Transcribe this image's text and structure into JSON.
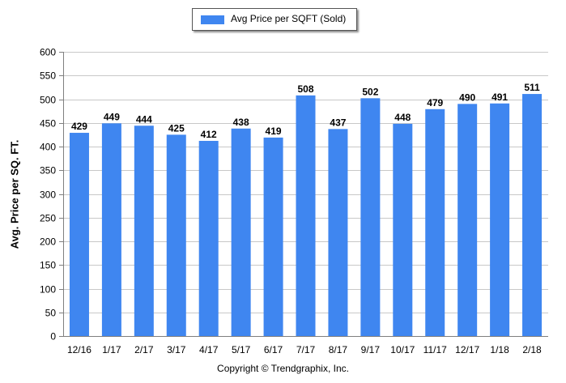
{
  "chart_data": {
    "type": "bar",
    "categories": [
      "12/16",
      "1/17",
      "2/17",
      "3/17",
      "4/17",
      "5/17",
      "6/17",
      "7/17",
      "8/17",
      "9/17",
      "10/17",
      "11/17",
      "12/17",
      "1/18",
      "2/18"
    ],
    "series": [
      {
        "name": "Avg Price per SQFT (Sold)",
        "values": [
          429,
          449,
          444,
          425,
          412,
          438,
          419,
          508,
          437,
          502,
          448,
          479,
          490,
          491,
          511
        ]
      }
    ],
    "ylabel": "Avg. Price per SQ. FT.",
    "xlabel": "",
    "ylim": [
      0,
      600
    ],
    "yticks": [
      0,
      50,
      100,
      150,
      200,
      250,
      300,
      350,
      400,
      450,
      500,
      550,
      600
    ],
    "grid": true,
    "legend_position": "top-center",
    "bar_color": "#3f86f0",
    "footer": "Copyright © Trendgraphix, Inc."
  }
}
